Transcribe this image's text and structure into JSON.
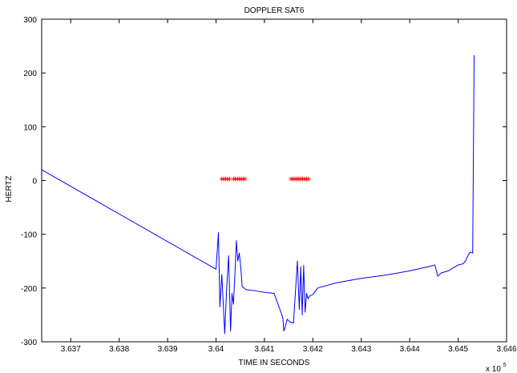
{
  "chart_data": {
    "type": "line",
    "title": "DOPPLER SAT6",
    "xlabel": "TIME IN SECONDS",
    "ylabel": "HERTZ",
    "x_multiplier_label": "x 10",
    "x_multiplier_exponent": "5",
    "xlim": [
      3.6364,
      3.646
    ],
    "ylim": [
      -300,
      300
    ],
    "x_ticks": [
      3.637,
      3.638,
      3.639,
      3.64,
      3.641,
      3.642,
      3.643,
      3.644,
      3.645,
      3.646
    ],
    "x_tick_labels": [
      "3.637",
      "3.638",
      "3.639",
      "3.64",
      "3.641",
      "3.642",
      "3.643",
      "3.644",
      "3.645",
      "3.646"
    ],
    "y_ticks": [
      -300,
      -200,
      -100,
      0,
      100,
      200,
      300
    ],
    "y_tick_labels": [
      "-300",
      "-200",
      "-100",
      "0",
      "100",
      "200",
      "300"
    ],
    "grid": false,
    "series": [
      {
        "color": "#0000ff",
        "style": "line",
        "x": [
          3.6364,
          3.64,
          3.64005,
          3.64008,
          3.64012,
          3.64018,
          3.64022,
          3.64026,
          3.6403,
          3.64033,
          3.64036,
          3.64039,
          3.64042,
          3.64045,
          3.64048,
          3.64051,
          3.64054,
          3.64058,
          3.64062,
          3.6408,
          3.641,
          3.6412,
          3.64138,
          3.6414,
          3.64143,
          3.64147,
          3.64152,
          3.6416,
          3.64168,
          3.64172,
          3.64175,
          3.64178,
          3.64181,
          3.64184,
          3.64187,
          3.6419,
          3.64193,
          3.642,
          3.6421,
          3.6425,
          3.643,
          3.6435,
          3.644,
          3.6444,
          3.64452,
          3.64458,
          3.64465,
          3.6448,
          3.645,
          3.6451,
          3.64515,
          3.6452,
          3.64525,
          3.6453,
          3.64533
        ],
        "y": [
          20,
          -165,
          -97,
          -235,
          -175,
          -285,
          -200,
          -140,
          -280,
          -210,
          -230,
          -175,
          -112,
          -150,
          -135,
          -160,
          -198,
          -200,
          -203,
          -205,
          -208,
          -210,
          -255,
          -280,
          -272,
          -258,
          -263,
          -265,
          -150,
          -240,
          -160,
          -250,
          -158,
          -245,
          -210,
          -220,
          -215,
          -212,
          -200,
          -190,
          -182,
          -176,
          -168,
          -160,
          -157,
          -178,
          -172,
          -168,
          -157,
          -155,
          -150,
          -140,
          -133,
          -135,
          233
        ]
      },
      {
        "color": "#ff0000",
        "style": "marker",
        "marker": "*",
        "x": [
          3.64012,
          3.64016,
          3.6402,
          3.64024,
          3.64028,
          3.64036,
          3.6404,
          3.64044,
          3.64048,
          3.64052,
          3.64056,
          3.6406,
          3.64155,
          3.64159,
          3.64163,
          3.64167,
          3.64171,
          3.64175,
          3.64179,
          3.64183,
          3.64187,
          3.64191
        ],
        "y": [
          0,
          0,
          0,
          0,
          0,
          0,
          0,
          0,
          0,
          0,
          0,
          0,
          0,
          0,
          0,
          0,
          0,
          0,
          0,
          0,
          0,
          0
        ]
      }
    ]
  }
}
